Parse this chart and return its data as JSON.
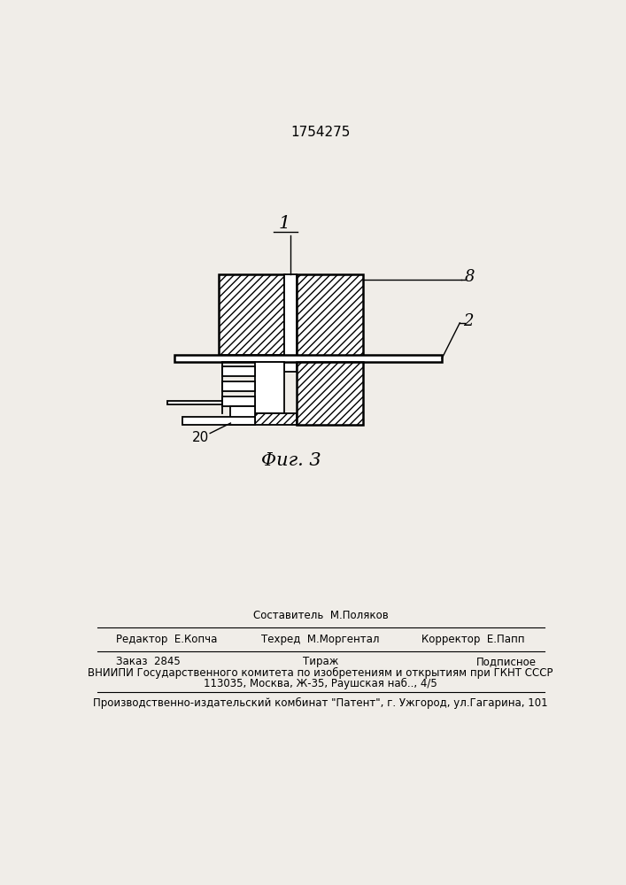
{
  "patent_number": "1754275",
  "figure_label": "Φиг. 3",
  "bg_color": "#f0ede8",
  "label_1": "1",
  "label_2": "2",
  "label_8": "8",
  "label_20": "20",
  "footer_sestavitel_top": "Составитель  М.Поляков",
  "footer_tehred": "Техред  М.Моргентал",
  "footer_redaktor": "Редактор  Е.Копча",
  "footer_korrektor": "Корректор  Е.Папп",
  "footer_zakaz": "Заказ  2845",
  "footer_tirazh": "Тираж",
  "footer_podpisnoe": "Подписное",
  "footer_vniipи": "ВНИИПИ Государственного комитета по изобретениям и открытиям при ГКНТ СССР",
  "footer_addr": "113035, Москва, Ж-35, Раушская наб.., 4/5",
  "footer_patent": "Производственно-издательский комбинат \"Патент\", г. Ужгород, ул.Гагарина, 101"
}
